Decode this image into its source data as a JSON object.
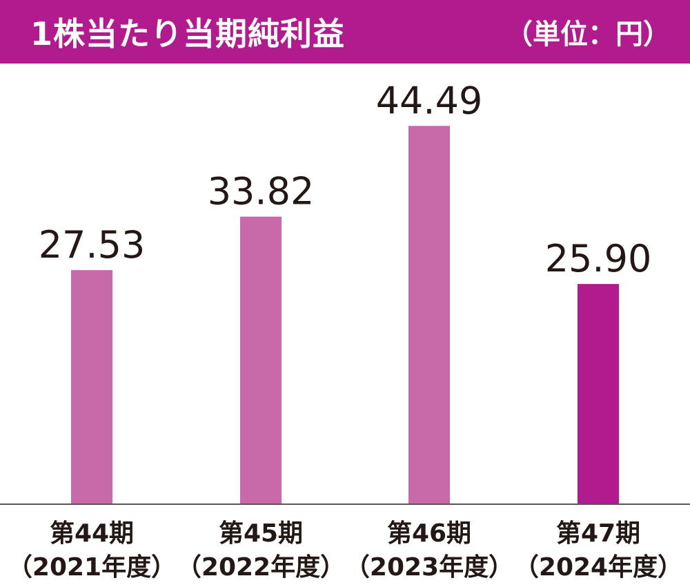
{
  "header": {
    "title": "1株当たり当期純利益",
    "unit": "（単位：円）"
  },
  "colors": {
    "header_bg": "#B11B8E",
    "bar_past": "#C86AAA",
    "bar_current": "#B11B8E",
    "axis": "#595757",
    "text": "#231815"
  },
  "chart_data": {
    "type": "bar",
    "title": "1株当たり当期純利益",
    "unit": "（単位：円）",
    "categories": [
      {
        "line1": "第44期",
        "line2": "（2021年度）"
      },
      {
        "line1": "第45期",
        "line2": "（2022年度）"
      },
      {
        "line1": "第46期",
        "line2": "（2023年度）"
      },
      {
        "line1": "第47期",
        "line2": "（2024年度）"
      }
    ],
    "values": [
      27.53,
      33.82,
      44.49,
      25.9
    ],
    "value_labels": [
      "27.53",
      "33.82",
      "44.49",
      "25.90"
    ],
    "highlight_index": 3,
    "ylim": [
      0,
      51.5
    ],
    "grid": false,
    "legend": "none"
  }
}
